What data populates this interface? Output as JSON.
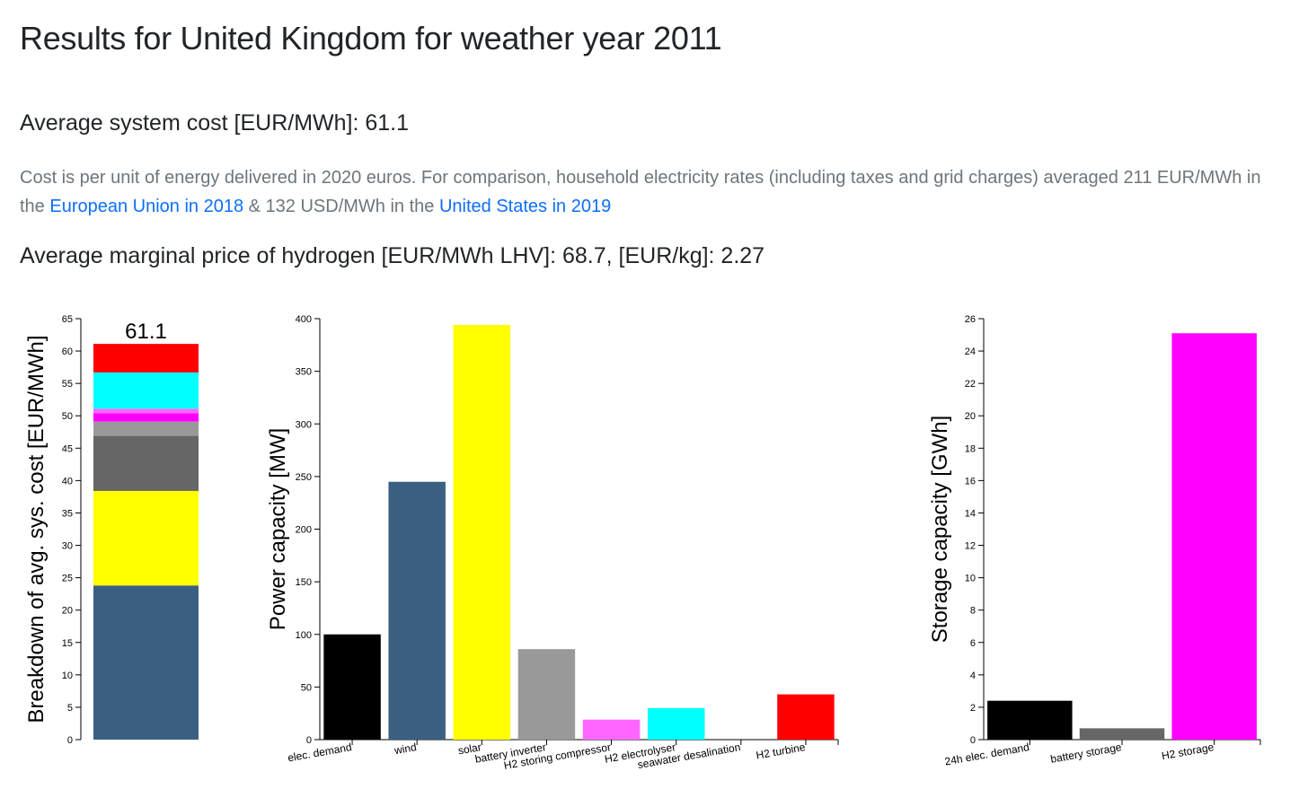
{
  "page": {
    "title": "Results for United Kingdom for weather year 2011",
    "cost_line": "Average system cost [EUR/MWh]: 61.1",
    "note": {
      "text1": "Cost is per unit of energy delivered in 2020 euros. For comparison, household electricity rates (including taxes and grid charges) averaged 211 EUR/MWh in",
      "text2": "the ",
      "link1": "European Union in 2018",
      "text3": " & 132 USD/MWh in the ",
      "link2": "United States in 2019"
    },
    "h2_line": "Average marginal price of hydrogen [EUR/MWh LHV]: 68.7, [EUR/kg]: 2.27"
  },
  "colors": {
    "elec_demand": "#000000",
    "wind": "#3b5f80",
    "solar": "#ffff00",
    "battery": "#999999",
    "battery_dark": "#666666",
    "h2_storage": "#ff00ff",
    "h2_compressor": "#ff66ff",
    "electrolyser": "#00ffff",
    "turbine": "#ff0000"
  },
  "chart_data": [
    {
      "type": "bar",
      "subtype": "stacked",
      "ylabel": "Breakdown of avg. sys. cost [EUR/MWh]",
      "ylim": [
        0,
        65
      ],
      "yticks": [
        0,
        5,
        10,
        15,
        20,
        25,
        30,
        35,
        40,
        45,
        50,
        55,
        60,
        65
      ],
      "total_label": "61.1",
      "segments": [
        {
          "value": 23.8,
          "color": "#3b5f80"
        },
        {
          "value": 14.6,
          "color": "#ffff00"
        },
        {
          "value": 8.5,
          "color": "#666666"
        },
        {
          "value": 2.2,
          "color": "#999999"
        },
        {
          "value": 1.3,
          "color": "#ff00ff"
        },
        {
          "value": 0.7,
          "color": "#ff66ff"
        },
        {
          "value": 5.6,
          "color": "#00ffff"
        },
        {
          "value": 4.4,
          "color": "#ff0000"
        }
      ]
    },
    {
      "type": "bar",
      "ylabel": "Power capacity [MW]",
      "ylim": [
        0,
        400
      ],
      "yticks": [
        0,
        50,
        100,
        150,
        200,
        250,
        300,
        350,
        400
      ],
      "categories": [
        "elec. demand",
        "wind",
        "solar",
        "battery inverter",
        "H2 storing compressor",
        "H2 electrolyser",
        "seawater desalination",
        "H2 turbine"
      ],
      "values": [
        100,
        245,
        394,
        86,
        19,
        30,
        0,
        43
      ],
      "colors": [
        "#000000",
        "#3b5f80",
        "#ffff00",
        "#999999",
        "#ff66ff",
        "#00ffff",
        "#ffffff",
        "#ff0000"
      ]
    },
    {
      "type": "bar",
      "ylabel": "Storage capacity [GWh]",
      "ylim": [
        0,
        26
      ],
      "yticks": [
        0,
        2,
        4,
        6,
        8,
        10,
        12,
        14,
        16,
        18,
        20,
        22,
        24,
        26
      ],
      "categories": [
        "24h elec. demand",
        "battery storage",
        "H2 storage"
      ],
      "values": [
        2.4,
        0.7,
        25.1
      ],
      "colors": [
        "#000000",
        "#666666",
        "#ff00ff"
      ]
    }
  ]
}
